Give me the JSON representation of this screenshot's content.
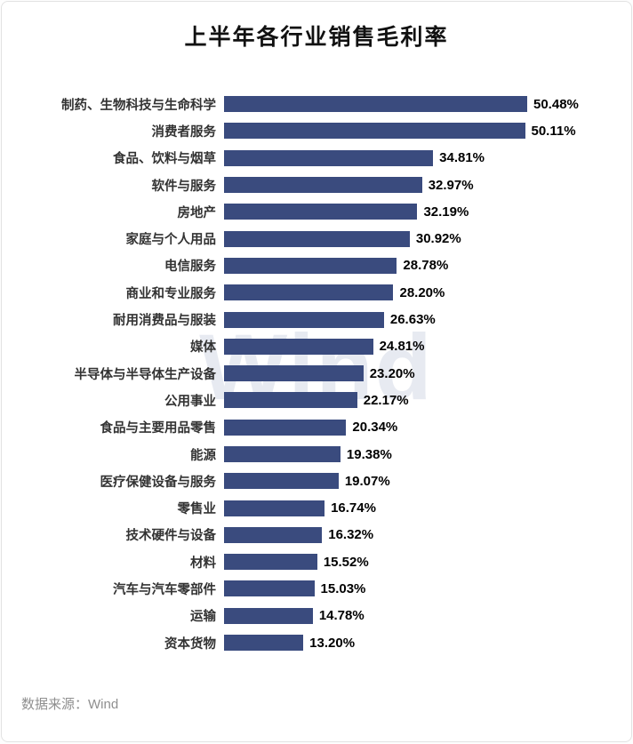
{
  "title": "上半年各行业销售毛利率",
  "watermark": "Wind",
  "footer": {
    "source": "数据来源：Wind"
  },
  "colors": {
    "bar": "#3a4b7e",
    "title": "#111111",
    "category_label": "#333333",
    "value_label": "#000000",
    "source_text": "#8f8f8f",
    "watermark": "#e7eaf1"
  },
  "chart_data": {
    "type": "bar",
    "orientation": "horizontal",
    "title": "上半年各行业销售毛利率",
    "xlabel": "",
    "ylabel": "",
    "xlim": [
      0,
      52
    ],
    "grid": false,
    "legend": false,
    "value_suffix": "%",
    "source": "数据来源：Wind",
    "categories": [
      "制药、生物科技与生命科学",
      "消费者服务",
      "食品、饮料与烟草",
      "软件与服务",
      "房地产",
      "家庭与个人用品",
      "电信服务",
      "商业和专业服务",
      "耐用消费品与服装",
      "媒体",
      "半导体与半导体生产设备",
      "公用事业",
      "食品与主要用品零售",
      "能源",
      "医疗保健设备与服务",
      "零售业",
      "技术硬件与设备",
      "材料",
      "汽车与汽车零部件",
      "运输",
      "资本货物"
    ],
    "values": [
      50.48,
      50.11,
      34.81,
      32.97,
      32.19,
      30.92,
      28.78,
      28.2,
      26.63,
      24.81,
      23.2,
      22.17,
      20.34,
      19.38,
      19.07,
      16.74,
      16.32,
      15.52,
      15.03,
      14.78,
      13.2
    ]
  }
}
